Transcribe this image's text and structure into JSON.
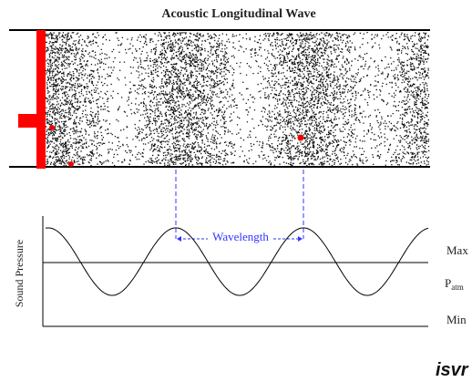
{
  "title": "Acoustic Longitudinal Wave",
  "wavelength_label": "Wavelength",
  "y_axis_label": "Sound Pressure",
  "levels": {
    "max": "Max",
    "atm": {
      "main": "P",
      "sub": "atm"
    },
    "min": "Min"
  },
  "logo": "isvr"
}
